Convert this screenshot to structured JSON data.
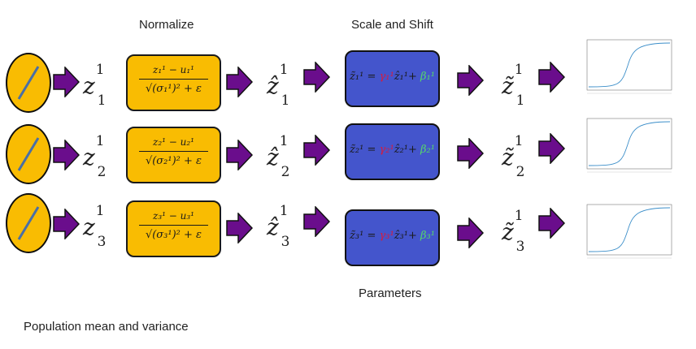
{
  "headers": {
    "normalize": "Normalize",
    "scale_shift": "Scale and Shift",
    "parameters": "Parameters",
    "population": "Population  mean and variance"
  },
  "colors": {
    "neuron": "#f9bc02",
    "norm_box": "#f9bc02",
    "scale_box": "#4455cc",
    "arrow": "#6a0d8c",
    "gamma": "#d81b3c",
    "beta": "#56d86a"
  },
  "rows": [
    {
      "z": "z",
      "i": "1",
      "norm_num": "z₁¹ − u₁¹",
      "norm_den": "√(σ₁¹)² + ε",
      "zhat": "ẑ",
      "ztilde": "z̃",
      "eq_lhs": "z̃₁¹ = ",
      "eq_gamma": "γ₁¹",
      "eq_mid": "ẑ₁¹+ ",
      "eq_beta": "β₁¹"
    },
    {
      "z": "z",
      "i": "2",
      "norm_num": "z₂¹ − u₂¹",
      "norm_den": "√(σ₂¹)² + ε",
      "zhat": "ẑ",
      "ztilde": "z̃",
      "eq_lhs": "z̃₂¹ = ",
      "eq_gamma": "γ₂¹",
      "eq_mid": "ẑ₂¹+ ",
      "eq_beta": "β₂¹"
    },
    {
      "z": "z",
      "i": "3",
      "norm_num": "z₃¹ − u₃¹",
      "norm_den": "√(σ₃¹)² + ε",
      "zhat": "ẑ",
      "ztilde": "z̃",
      "eq_lhs": "z̃₃¹ = ",
      "eq_gamma": "γ₃¹",
      "eq_mid": "ẑ₃¹+ ",
      "eq_beta": "β₃¹"
    }
  ],
  "superscript": "1"
}
